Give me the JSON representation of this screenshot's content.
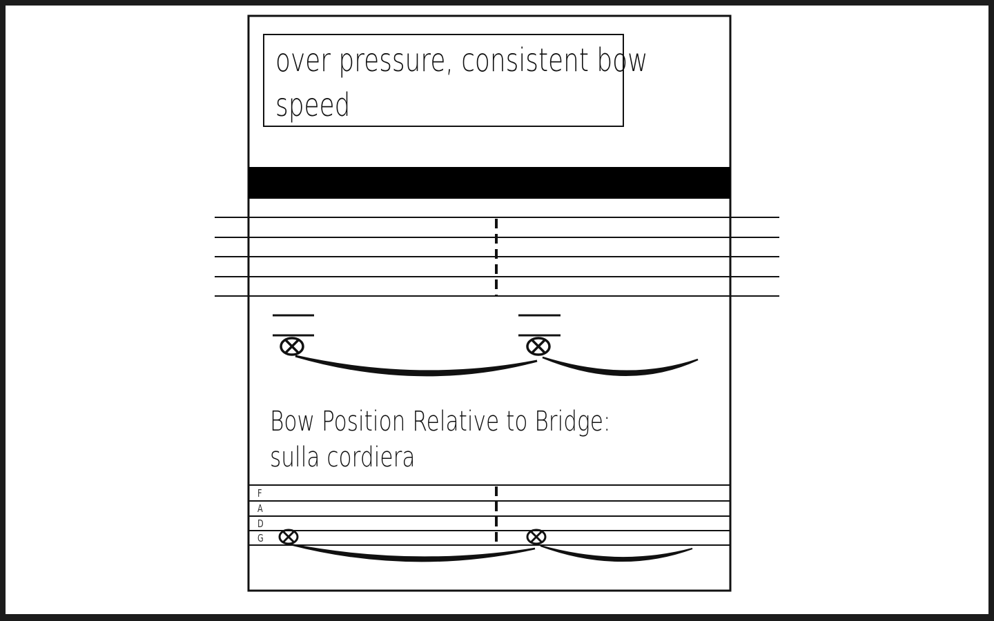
{
  "instruction": {
    "line1": "over pressure, consistent bow",
    "line2": "speed"
  },
  "bow_position": {
    "title": "Bow Position Relative to Bridge:",
    "value": "sulla cordiera"
  },
  "string_labels": [
    "F",
    "A",
    "D",
    "G"
  ],
  "colors": {
    "ink": "#111111",
    "page": "#ffffff",
    "frame": "#1c1c1c"
  },
  "icons": {
    "notehead": "x-circle-notehead-icon"
  }
}
